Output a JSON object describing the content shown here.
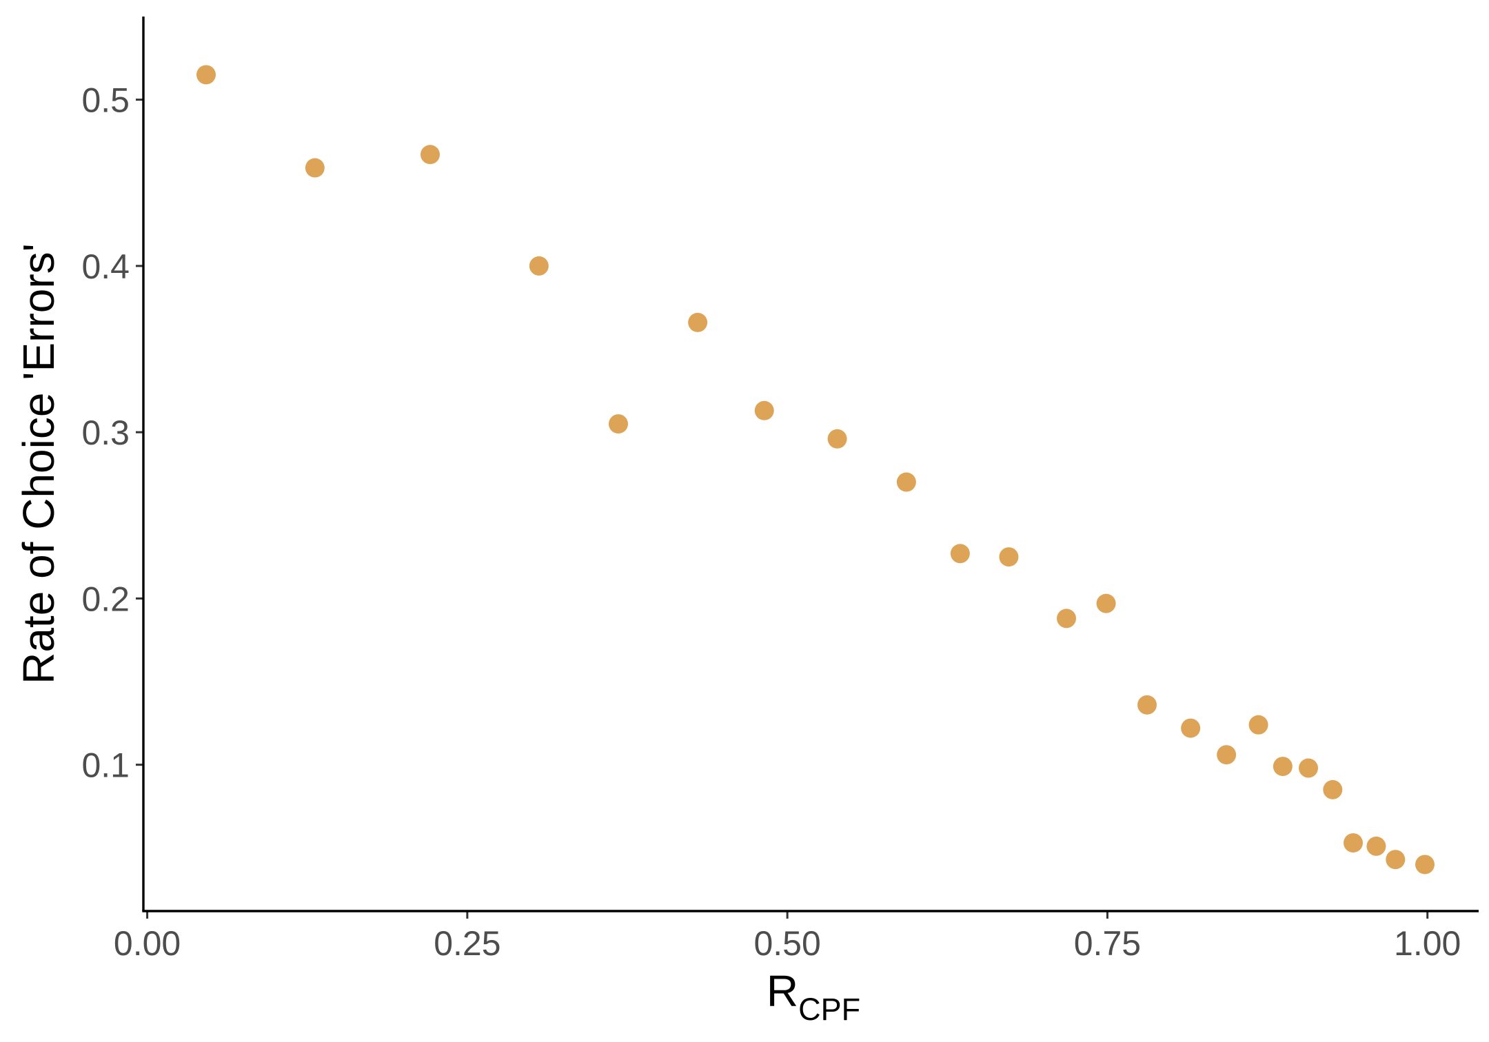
{
  "chart_data": {
    "type": "scatter",
    "title": "",
    "xlabel": "R",
    "xlabel_subscript": "CPF",
    "ylabel": "Rate of Choice 'Errors'",
    "xlim": [
      -0.003,
      1.04
    ],
    "ylim": [
      0.012,
      0.55
    ],
    "xticks": [
      0,
      0.25,
      0.5,
      0.75,
      1.0
    ],
    "xtick_labels": [
      "0.00",
      "0.25",
      "0.50",
      "0.75",
      "1.00"
    ],
    "yticks": [
      0.1,
      0.2,
      0.3,
      0.4,
      0.5
    ],
    "ytick_labels": [
      "0.1",
      "0.2",
      "0.3",
      "0.4",
      "0.5"
    ],
    "grid": false,
    "legend": "none",
    "point_color": "#DDA458",
    "points": [
      {
        "x": 0.046,
        "y": 0.515
      },
      {
        "x": 0.131,
        "y": 0.459
      },
      {
        "x": 0.221,
        "y": 0.467
      },
      {
        "x": 0.306,
        "y": 0.4
      },
      {
        "x": 0.368,
        "y": 0.305
      },
      {
        "x": 0.43,
        "y": 0.366
      },
      {
        "x": 0.482,
        "y": 0.313
      },
      {
        "x": 0.539,
        "y": 0.296
      },
      {
        "x": 0.593,
        "y": 0.27
      },
      {
        "x": 0.635,
        "y": 0.227
      },
      {
        "x": 0.673,
        "y": 0.225
      },
      {
        "x": 0.718,
        "y": 0.188
      },
      {
        "x": 0.749,
        "y": 0.197
      },
      {
        "x": 0.781,
        "y": 0.136
      },
      {
        "x": 0.815,
        "y": 0.122
      },
      {
        "x": 0.843,
        "y": 0.106
      },
      {
        "x": 0.868,
        "y": 0.124
      },
      {
        "x": 0.887,
        "y": 0.099
      },
      {
        "x": 0.907,
        "y": 0.098
      },
      {
        "x": 0.926,
        "y": 0.085
      },
      {
        "x": 0.942,
        "y": 0.053
      },
      {
        "x": 0.96,
        "y": 0.051
      },
      {
        "x": 0.975,
        "y": 0.043
      },
      {
        "x": 0.998,
        "y": 0.04
      }
    ]
  }
}
